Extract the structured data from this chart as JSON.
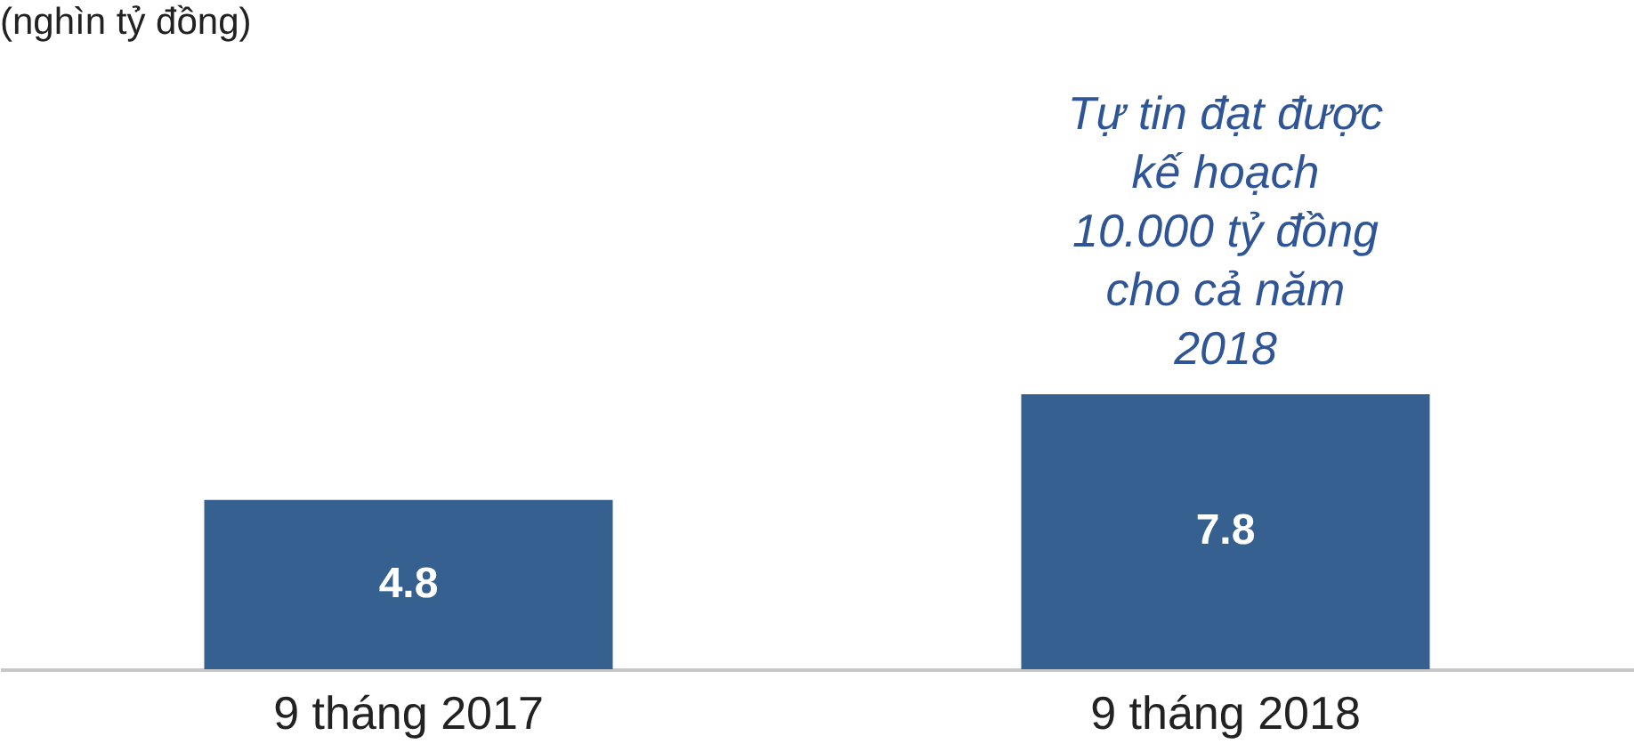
{
  "chart_data": {
    "type": "bar",
    "categories": [
      "9 tháng 2017",
      "9 tháng 2018"
    ],
    "values": [
      4.8,
      7.8
    ],
    "color": "#36608f",
    "data_labels": true,
    "grid": false,
    "tick_labels": "x",
    "annotations": [
      "(nghìn tỷ đồng)",
      {
        "text": "Tự tin đạt được\nkế hoạch\n10.000 tỷ đồng\ncho cả năm\n2018",
        "x": "9 tháng 2018",
        "y": 7.8
      }
    ]
  }
}
